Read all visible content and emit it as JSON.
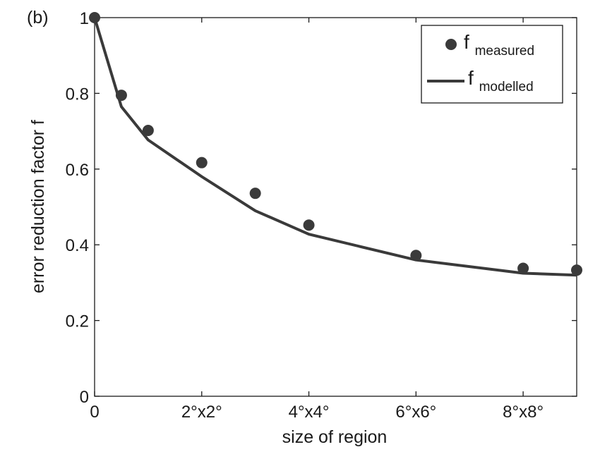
{
  "panel_label": "(b)",
  "chart_data": {
    "type": "scatter",
    "title": "",
    "xlabel": "size of region",
    "ylabel": "error reduction factor f",
    "xlim": [
      0,
      9
    ],
    "ylim": [
      0,
      1
    ],
    "grid": false,
    "legend_position": "top-right",
    "x_ticks": [
      {
        "value": 0,
        "label": "0"
      },
      {
        "value": 2,
        "label": "2°x2°"
      },
      {
        "value": 4,
        "label": "4°x4°"
      },
      {
        "value": 6,
        "label": "6°x6°"
      },
      {
        "value": 8,
        "label": "8°x8°"
      }
    ],
    "y_ticks": [
      {
        "value": 0,
        "label": "0"
      },
      {
        "value": 0.2,
        "label": "0.2"
      },
      {
        "value": 0.4,
        "label": "0.4"
      },
      {
        "value": 0.6,
        "label": "0.6"
      },
      {
        "value": 0.8,
        "label": "0.8"
      },
      {
        "value": 1,
        "label": "1"
      }
    ],
    "series": [
      {
        "name": "f_measured",
        "legend_base": "f",
        "legend_sub": "measured",
        "style": "markers",
        "color": "#3a3a3a",
        "x": [
          0,
          0.5,
          1,
          2,
          3,
          4,
          6,
          8,
          9
        ],
        "y": [
          1.0,
          0.795,
          0.702,
          0.617,
          0.536,
          0.452,
          0.372,
          0.338,
          0.333
        ]
      },
      {
        "name": "f_modelled",
        "legend_base": "f",
        "legend_sub": "modelled",
        "style": "line",
        "color": "#3a3a3a",
        "x": [
          0,
          0.5,
          1,
          2,
          3,
          4,
          6,
          8,
          9
        ],
        "y": [
          1.0,
          0.765,
          0.677,
          0.58,
          0.49,
          0.428,
          0.36,
          0.325,
          0.32
        ]
      }
    ]
  }
}
